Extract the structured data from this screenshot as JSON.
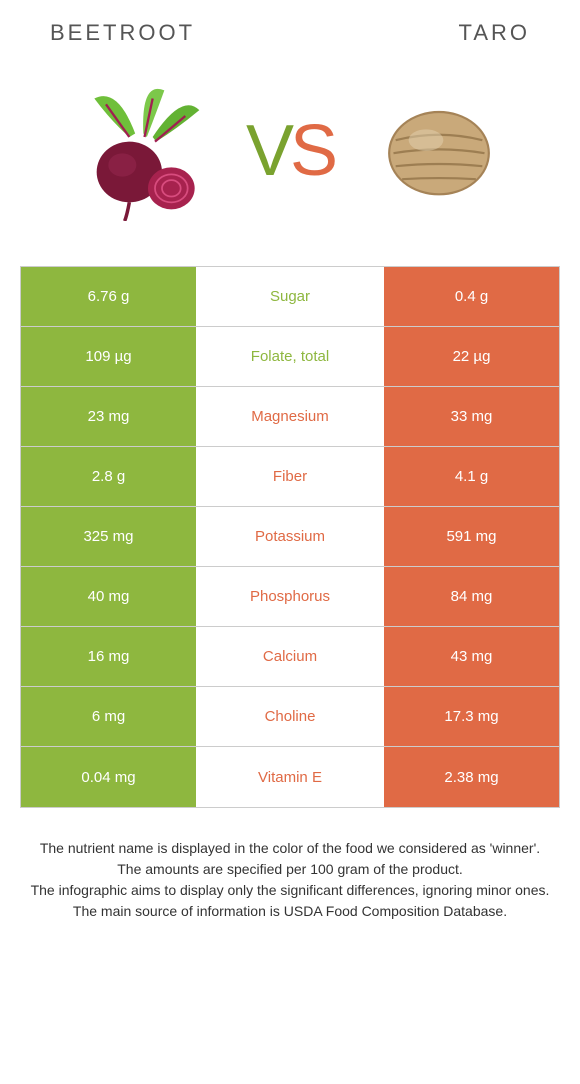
{
  "header": {
    "left": "Beetroot",
    "right": "Taro"
  },
  "vs": {
    "v": "V",
    "s": "S"
  },
  "colors": {
    "left": "#8eb73f",
    "right": "#e06a45",
    "bg": "#ffffff",
    "border": "#cccccc"
  },
  "rows": [
    {
      "left": "6.76 g",
      "label": "Sugar",
      "right": "0.4 g",
      "winner": "left"
    },
    {
      "left": "109 µg",
      "label": "Folate, total",
      "right": "22 µg",
      "winner": "left"
    },
    {
      "left": "23 mg",
      "label": "Magnesium",
      "right": "33 mg",
      "winner": "right"
    },
    {
      "left": "2.8 g",
      "label": "Fiber",
      "right": "4.1 g",
      "winner": "right"
    },
    {
      "left": "325 mg",
      "label": "Potassium",
      "right": "591 mg",
      "winner": "right"
    },
    {
      "left": "40 mg",
      "label": "Phosphorus",
      "right": "84 mg",
      "winner": "right"
    },
    {
      "left": "16 mg",
      "label": "Calcium",
      "right": "43 mg",
      "winner": "right"
    },
    {
      "left": "6 mg",
      "label": "Choline",
      "right": "17.3 mg",
      "winner": "right"
    },
    {
      "left": "0.04 mg",
      "label": "Vitamin E",
      "right": "2.38 mg",
      "winner": "right"
    }
  ],
  "footer": {
    "line1": "The nutrient name is displayed in the color of the food we considered as 'winner'.",
    "line2": "The amounts are specified per 100 gram of the product.",
    "line3": "The infographic aims to display only the significant differences, ignoring minor ones.",
    "line4": "The main source of information is USDA Food Composition Database."
  }
}
